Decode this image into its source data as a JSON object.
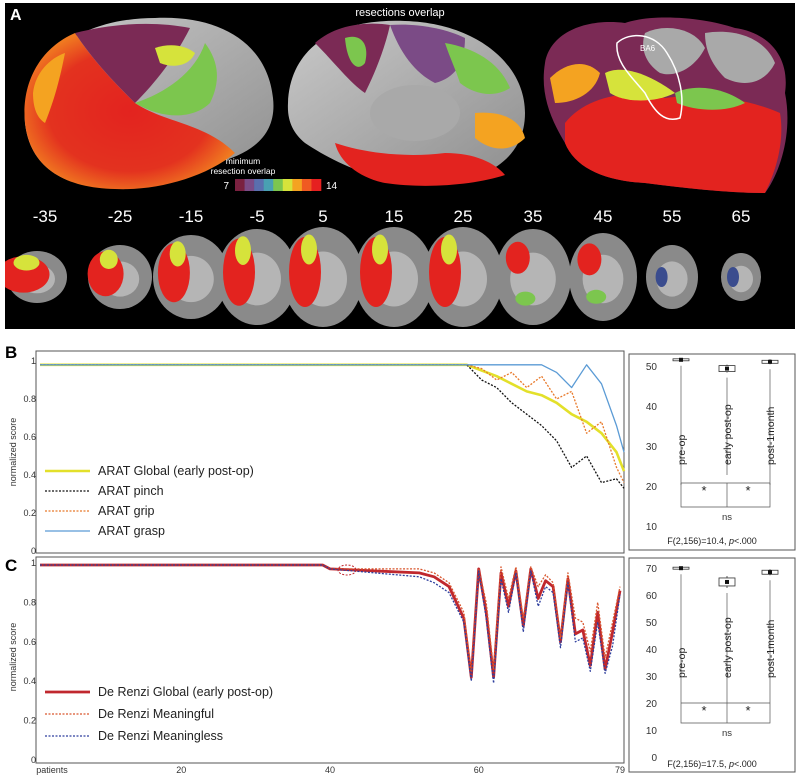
{
  "panelA": {
    "label": "A",
    "title": "resections overlap",
    "colorbar_title_line1": "minimum",
    "colorbar_title_line2": "resection overlap",
    "colorbar_min": "7",
    "colorbar_max": "14",
    "colorbar_colors": [
      "#7a2140",
      "#7b4b86",
      "#5a6fae",
      "#49a0b2",
      "#7cc64e",
      "#d6e33b",
      "#f4a321",
      "#f05a22",
      "#e62020"
    ],
    "ba6_label": "BA6",
    "slices": [
      "-35",
      "-25",
      "-15",
      "-5",
      "5",
      "15",
      "25",
      "35",
      "45",
      "55",
      "65"
    ]
  },
  "panelB": {
    "label": "B",
    "ylabel": "normalized score",
    "yticks": [
      "1",
      "0.8",
      "0.6",
      "0.4",
      "0.2",
      "0"
    ],
    "legend": [
      "ARAT Global (early post-op)",
      "ARAT pinch",
      "ARAT grip",
      "ARAT grasp"
    ],
    "box_ticks": [
      "50",
      "40",
      "30",
      "20",
      "10"
    ],
    "box_cats": [
      "pre-op",
      "early post-op",
      "post-1month"
    ],
    "star1": "*",
    "star2": "*",
    "ns": "ns",
    "stat_pre": "F(2,156)=10.4, ",
    "stat_p": "p",
    "stat_post": "<.000"
  },
  "panelC": {
    "label": "C",
    "ylabel": "normalized score",
    "yticks": [
      "1",
      "0.8",
      "0.6",
      "0.4",
      "0.2",
      "0"
    ],
    "legend": [
      "De Renzi Global (early post-op)",
      "De Renzi Meaningful",
      "De Renzi Meaningless"
    ],
    "xticks": [
      "patients",
      "20",
      "40",
      "60",
      "79"
    ],
    "box_ticks": [
      "70",
      "60",
      "50",
      "40",
      "30",
      "20",
      "10",
      "0"
    ],
    "box_cats": [
      "pre-op",
      "early post-op",
      "post-1month"
    ],
    "star1": "*",
    "star2": "*",
    "ns": "ns",
    "stat_pre": "F(2,156)=17.5, ",
    "stat_p": "p",
    "stat_post": "<.000"
  },
  "chart_data": [
    {
      "type": "line",
      "ylabel": "normalized score",
      "ylim": [
        0,
        1
      ],
      "x": [
        1,
        58,
        60,
        62,
        64,
        66,
        68,
        70,
        72,
        74,
        76,
        78,
        79
      ],
      "series": [
        {
          "name": "ARAT Global (early post-op)",
          "color": "#e3e02a",
          "values": [
            0.98,
            0.98,
            0.95,
            0.92,
            0.88,
            0.84,
            0.82,
            0.78,
            0.72,
            0.68,
            0.62,
            0.52,
            0.42
          ]
        },
        {
          "name": "ARAT pinch",
          "color": "#111111",
          "values": [
            0.98,
            0.98,
            0.9,
            0.86,
            0.78,
            0.72,
            0.66,
            0.58,
            0.44,
            0.5,
            0.36,
            0.38,
            0.33
          ]
        },
        {
          "name": "ARAT grip",
          "color": "#e8792a",
          "values": [
            0.98,
            0.98,
            0.96,
            0.9,
            0.94,
            0.86,
            0.92,
            0.8,
            0.84,
            0.62,
            0.68,
            0.44,
            0.36
          ]
        },
        {
          "name": "ARAT grasp",
          "color": "#5b9bd5",
          "values": [
            0.98,
            0.98,
            0.98,
            0.98,
            0.98,
            0.98,
            0.98,
            0.94,
            0.86,
            0.98,
            0.88,
            0.66,
            0.52
          ]
        }
      ]
    },
    {
      "type": "line",
      "ylabel": "normalized score",
      "ylim": [
        0,
        1
      ],
      "x": [
        1,
        39,
        40,
        52,
        54,
        56,
        58,
        59,
        60,
        61,
        62,
        63,
        64,
        65,
        66,
        67,
        68,
        69,
        70,
        71,
        72,
        73,
        74,
        75,
        76,
        77,
        78,
        79
      ],
      "series": [
        {
          "name": "De Renzi Global (early post-op)",
          "color": "#c0282e",
          "values": [
            0.99,
            0.99,
            0.97,
            0.95,
            0.93,
            0.88,
            0.72,
            0.42,
            0.97,
            0.75,
            0.42,
            0.95,
            0.78,
            0.96,
            0.68,
            0.97,
            0.82,
            0.91,
            0.88,
            0.6,
            0.92,
            0.64,
            0.66,
            0.48,
            0.75,
            0.46,
            0.65,
            0.86
          ]
        },
        {
          "name": "De Renzi Meaningful",
          "color": "#d9572e",
          "values": [
            0.99,
            0.99,
            0.97,
            0.97,
            0.95,
            0.9,
            0.75,
            0.45,
            0.97,
            0.8,
            0.46,
            0.98,
            0.82,
            0.98,
            0.72,
            0.98,
            0.88,
            0.94,
            0.9,
            0.62,
            0.95,
            0.72,
            0.7,
            0.55,
            0.8,
            0.52,
            0.7,
            0.88
          ]
        },
        {
          "name": "De Renzi Meaningless",
          "color": "#2e3f9e",
          "values": [
            0.99,
            0.99,
            0.97,
            0.93,
            0.9,
            0.85,
            0.7,
            0.4,
            0.96,
            0.72,
            0.39,
            0.92,
            0.75,
            0.95,
            0.65,
            0.96,
            0.78,
            0.88,
            0.85,
            0.57,
            0.9,
            0.6,
            0.62,
            0.45,
            0.7,
            0.44,
            0.58,
            0.84
          ]
        }
      ]
    },
    {
      "type": "box",
      "categories": [
        "pre-op",
        "early post-op",
        "post-1month"
      ],
      "ylim": [
        10,
        50
      ],
      "medians": [
        51.8,
        49.6,
        51.3
      ]
    },
    {
      "type": "box",
      "categories": [
        "pre-op",
        "early post-op",
        "post-1month"
      ],
      "ylim": [
        0,
        70
      ],
      "medians": [
        70.3,
        65.2,
        68.8
      ]
    }
  ]
}
